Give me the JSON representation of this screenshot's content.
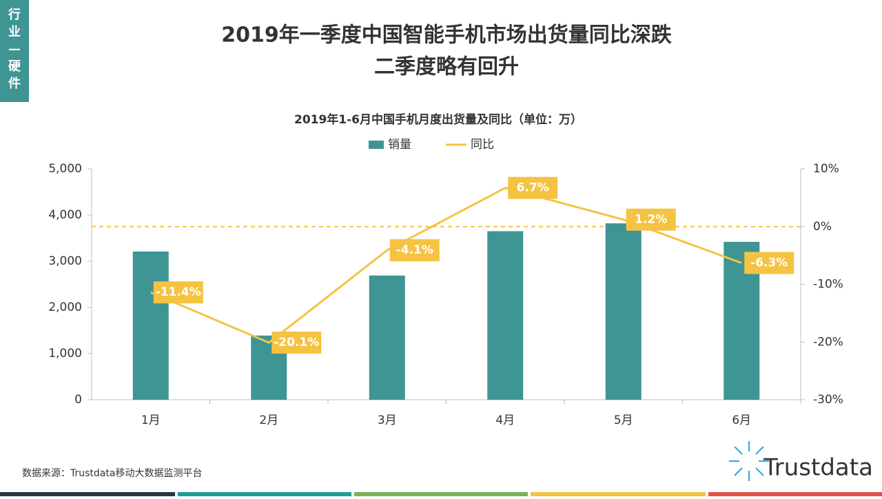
{
  "side_tab": "行业—硬件",
  "header": {
    "title_line1": "2019年一季度中国智能手机市场出货量同比深跌",
    "title_line2": "二季度略有回升"
  },
  "chart_data": {
    "type": "bar-line",
    "title": "2019年1-6月中国手机月度出货量及同比（单位：万）",
    "categories": [
      "1月",
      "2月",
      "3月",
      "4月",
      "5月",
      "6月"
    ],
    "series": [
      {
        "name": "销量",
        "type": "bar",
        "color": "#3f9494",
        "values": [
          3210,
          1390,
          2690,
          3650,
          3820,
          3420
        ]
      },
      {
        "name": "同比",
        "type": "line",
        "axis": "y2",
        "color": "#f5c342",
        "values": [
          -11.4,
          -20.1,
          -4.1,
          6.7,
          1.2,
          -6.3
        ],
        "value_labels": [
          "-11.4%",
          "-20.1%",
          "-4.1%",
          "6.7%",
          "1.2%",
          "-6.3%"
        ]
      }
    ],
    "ylim": [
      0,
      5000
    ],
    "yticks": [
      0,
      {
        "value": 1000,
        "label": "1,000"
      },
      {
        "value": 2000,
        "label": "2,000"
      },
      {
        "value": 3000,
        "label": "3,000"
      },
      {
        "value": 4000,
        "label": "4,000"
      },
      {
        "value": 5000,
        "label": "5,000"
      }
    ],
    "y2lim": [
      -30,
      10
    ],
    "y2ticks": [
      {
        "value": -30,
        "label": "-30%"
      },
      {
        "value": -20,
        "label": "-20%"
      },
      {
        "value": -10,
        "label": "-10%"
      },
      {
        "value": 0,
        "label": "0%"
      },
      {
        "value": 10,
        "label": "10%"
      }
    ],
    "zero_line": true,
    "legend": "top"
  },
  "footer": {
    "source": "数据来源：Trustdata移动大数据监测平台",
    "logo": "Trustdata"
  }
}
